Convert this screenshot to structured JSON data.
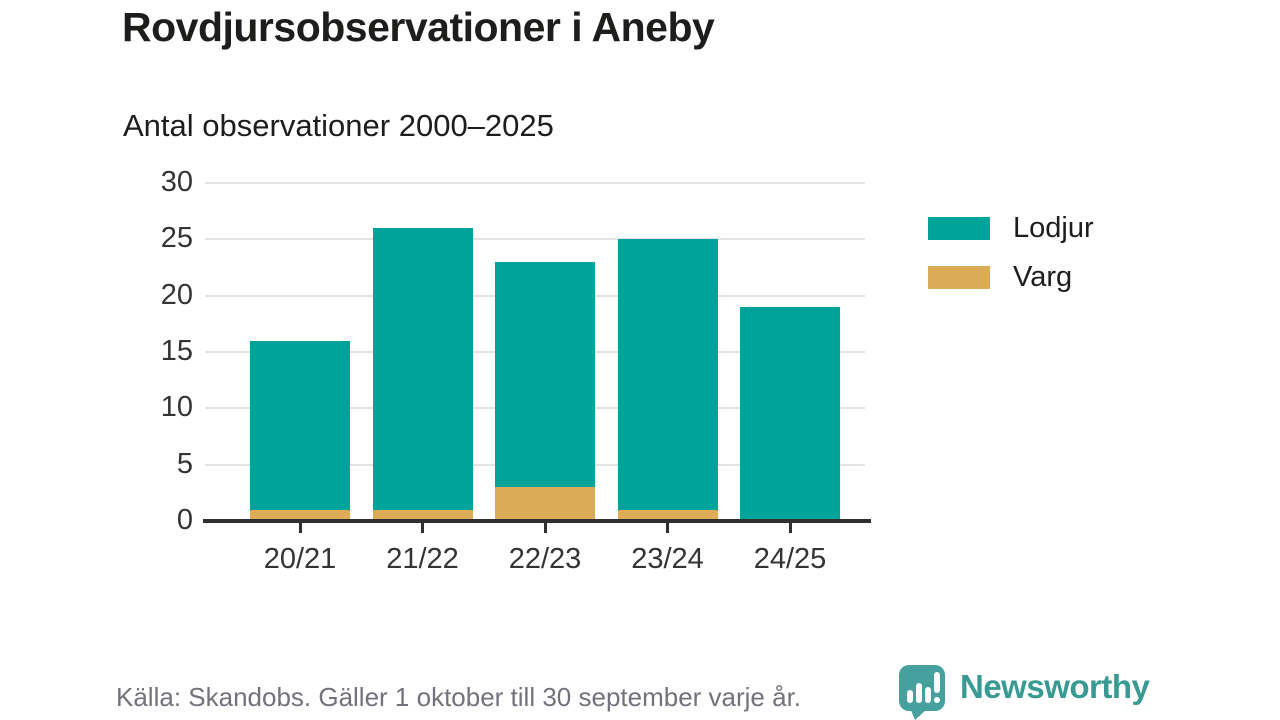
{
  "header": {
    "title": "Rovdjursobservationer i Aneby",
    "subtitle": "Antal observationer 2000–2025"
  },
  "chart_data": {
    "type": "bar",
    "stacked": true,
    "title": "Rovdjursobservationer i Aneby",
    "subtitle": "Antal observationer 2000–2025",
    "categories": [
      "20/21",
      "21/22",
      "22/23",
      "23/24",
      "24/25"
    ],
    "series": [
      {
        "name": "Lodjur",
        "color": "#00a399",
        "values": [
          15,
          25,
          20,
          24,
          19
        ]
      },
      {
        "name": "Varg",
        "color": "#dbab55",
        "values": [
          1,
          1,
          3,
          1,
          0
        ]
      }
    ],
    "stack_order_bottom_to_top": [
      "Varg",
      "Lodjur"
    ],
    "totals": [
      16,
      26,
      23,
      25,
      19
    ],
    "ylim": [
      0,
      30
    ],
    "ytick_step": 5,
    "yticks": [
      0,
      5,
      10,
      15,
      20,
      25,
      30
    ],
    "grid": "horizontal",
    "legend_position": "right",
    "xlabel": "",
    "ylabel": ""
  },
  "colors": {
    "lodjur": "#00a399",
    "varg": "#dbab55",
    "gridline": "#e3e3e3",
    "axis": "#2f2f2f",
    "text_dark": "#1d1d1b",
    "text_axis": "#343434",
    "text_source": "#72727c",
    "logo_teal": "#46a09d",
    "logo_text_teal": "#399a94"
  },
  "footer": {
    "source_text": "Källa: Skandobs. Gäller 1 oktober till 30 september varje år.",
    "logo_text": "Newsworthy"
  },
  "icons": {
    "logo_mark": "bar-chart-speech-bubble-icon"
  }
}
